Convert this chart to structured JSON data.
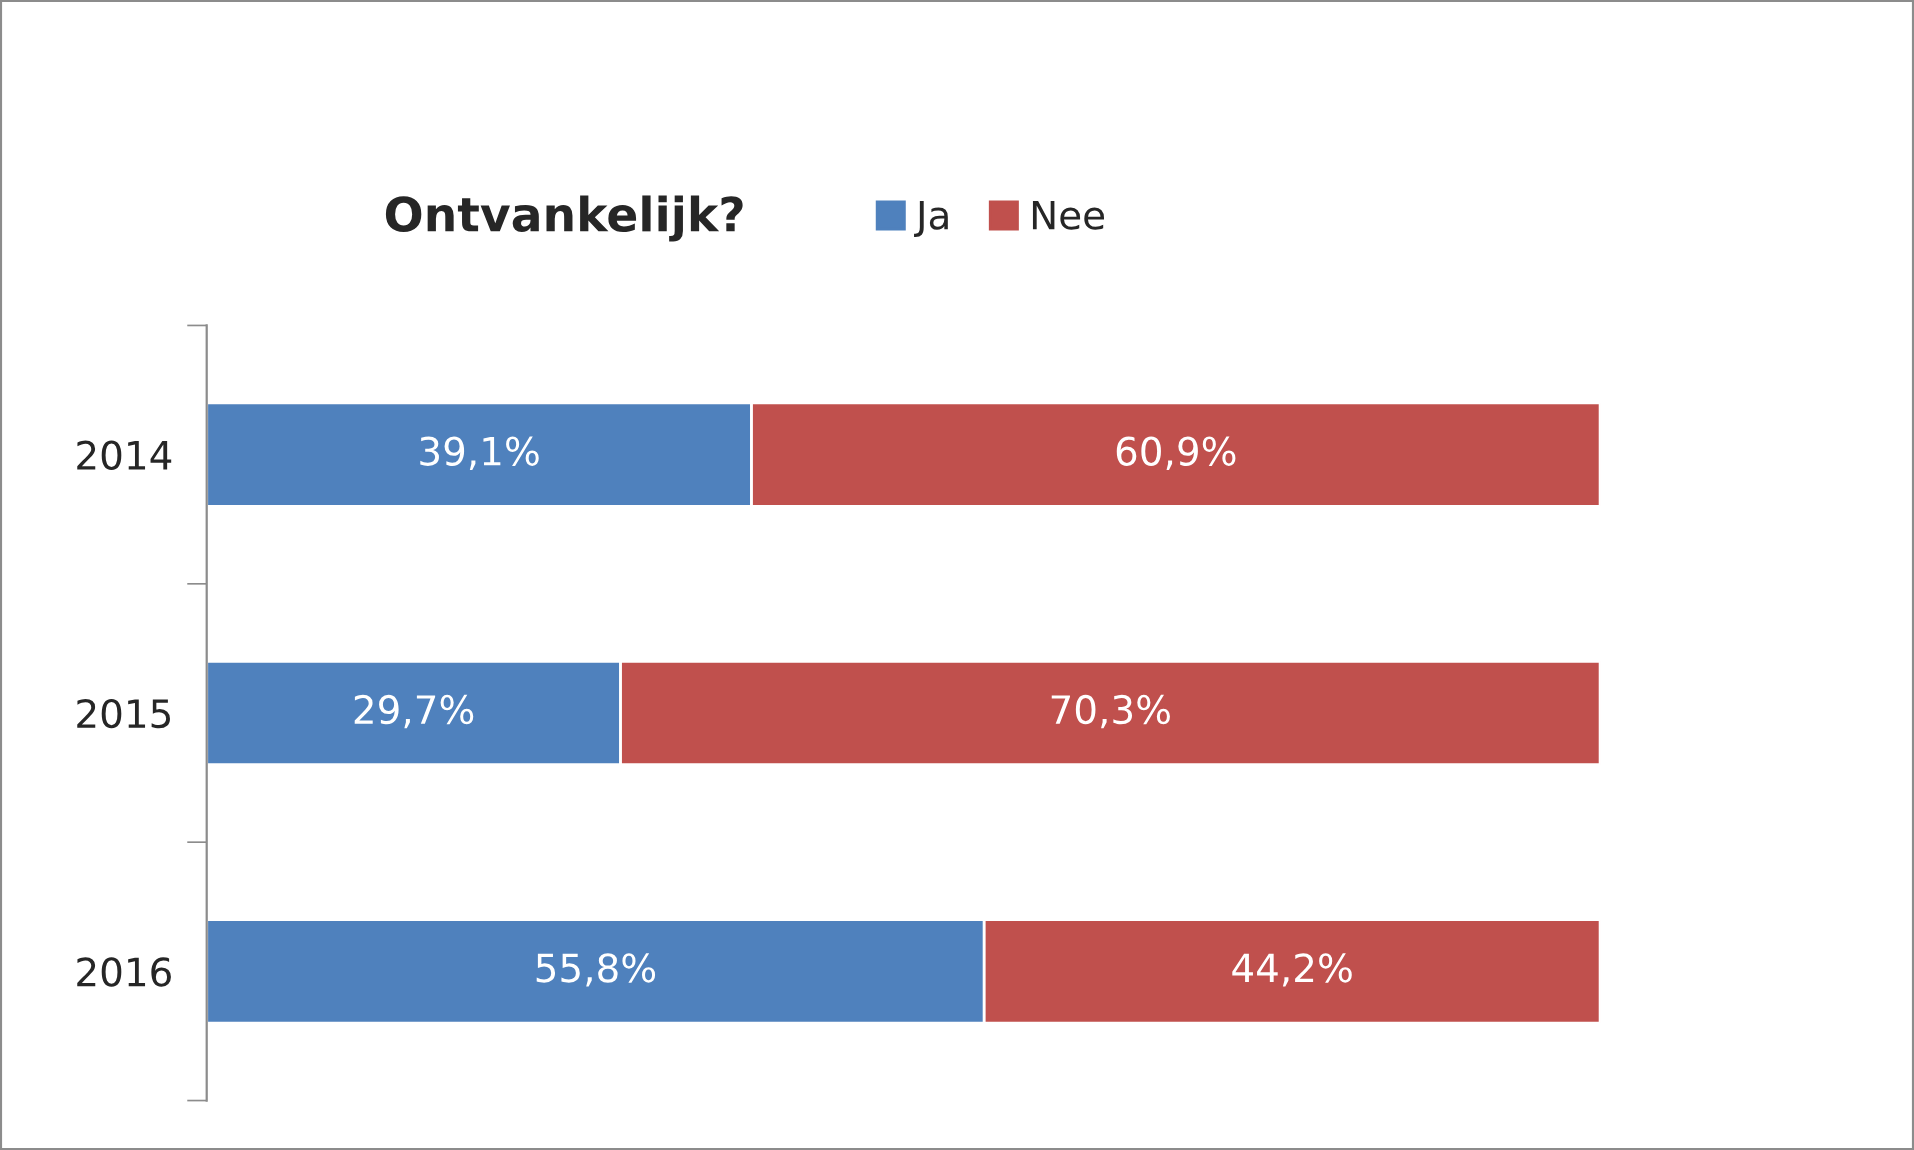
{
  "chart_data": {
    "type": "bar",
    "orientation": "horizontal",
    "stacked": true,
    "title": "Ontvankelijk?",
    "categories": [
      "2014",
      "2015",
      "2016"
    ],
    "series": [
      {
        "name": "Ja",
        "color": "#4f81bd",
        "values": [
          39.1,
          29.7,
          55.8
        ],
        "value_labels": [
          "39,1%",
          "29,7%",
          "55,8%"
        ]
      },
      {
        "name": "Nee",
        "color": "#c0504d",
        "values": [
          60.9,
          70.3,
          44.2
        ],
        "value_labels": [
          "60,9%",
          "70,3%",
          "44,2%"
        ]
      }
    ],
    "xlim": [
      0,
      100
    ],
    "tick_labels": "y",
    "grid": false,
    "legend": "top"
  }
}
